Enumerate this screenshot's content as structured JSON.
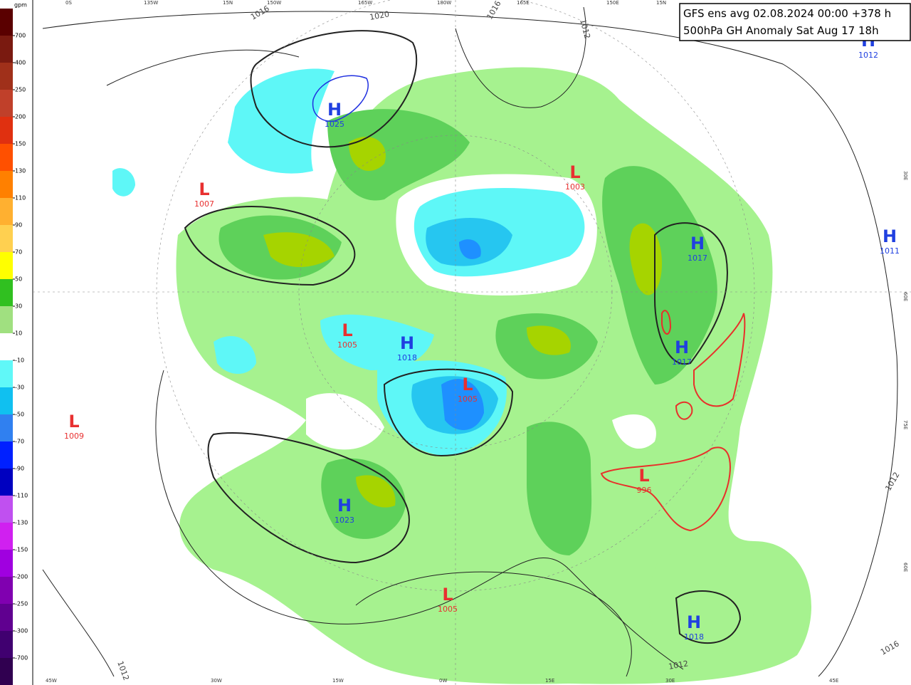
{
  "title": {
    "line1": "GFS ens avg 02.08.2024 00:00 +378 h",
    "line2": "500hPa GH Anomaly Sat Aug 17 18h"
  },
  "colorbar": {
    "unit": "gpm",
    "labels": [
      "700",
      "400",
      "250",
      "200",
      "150",
      "130",
      "110",
      "90",
      "70",
      "50",
      "30",
      "10",
      "-10",
      "-30",
      "-50",
      "-70",
      "-90",
      "-110",
      "-130",
      "-150",
      "-200",
      "-250",
      "-300",
      "-700"
    ],
    "colors": [
      "#5a0000",
      "#7a1a10",
      "#a0301a",
      "#c0402a",
      "#e03010",
      "#ff5000",
      "#ff8000",
      "#ffb030",
      "#ffd050",
      "#ffff00",
      "#30c020",
      "#a0e080",
      "#ffffff",
      "#60f8f8",
      "#10c0f0",
      "#3080f0",
      "#0020ff",
      "#0000c0",
      "#c050f0",
      "#d020f0",
      "#a000e0",
      "#8000b0",
      "#600090",
      "#400070",
      "#300050"
    ]
  },
  "centers": [
    {
      "type": "H",
      "value": "1025"
    },
    {
      "type": "L",
      "value": "1007"
    },
    {
      "type": "L",
      "value": "1003"
    },
    {
      "type": "H",
      "value": "1017"
    },
    {
      "type": "H",
      "value": "1011"
    },
    {
      "type": "H",
      "value": "1012"
    },
    {
      "type": "L",
      "value": "1005"
    },
    {
      "type": "H",
      "value": "1018"
    },
    {
      "type": "L",
      "value": "1005"
    },
    {
      "type": "H",
      "value": "1017"
    },
    {
      "type": "L",
      "value": "1009"
    },
    {
      "type": "H",
      "value": "1023"
    },
    {
      "type": "L",
      "value": "996"
    },
    {
      "type": "L",
      "value": "1005"
    },
    {
      "type": "H",
      "value": "1018"
    }
  ],
  "isobar_labels": [
    "1016",
    "1020",
    "1016",
    "1012",
    "1012",
    "1016",
    "1012",
    "1012"
  ],
  "edge_labels": [
    "0S",
    "135W",
    "15N",
    "150W",
    "165W",
    "180W",
    "165E",
    "150E",
    "15N",
    "45W",
    "30W",
    "15W",
    "0W",
    "15E",
    "30E",
    "45E",
    "30E",
    "60E",
    "75E",
    "60E"
  ]
}
